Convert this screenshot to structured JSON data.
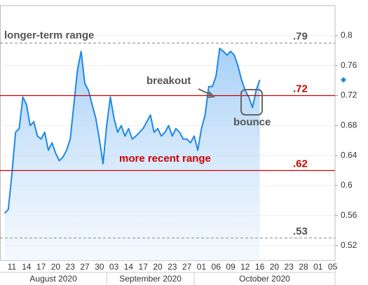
{
  "chart_data": {
    "type": "line",
    "categories": [
      null,
      null,
      "11",
      null,
      null,
      null,
      "14",
      null,
      null,
      null,
      "17",
      null,
      null,
      null,
      "20",
      null,
      null,
      null,
      "23",
      null,
      null,
      null,
      "27",
      null,
      null,
      null,
      "30",
      null,
      null,
      null,
      "03",
      null,
      null,
      null,
      "14",
      null,
      null,
      null,
      "17",
      null,
      null,
      null,
      "20",
      null,
      null,
      null,
      "23",
      null,
      null,
      null,
      "27",
      null,
      null,
      null,
      "01",
      null,
      null,
      null,
      "06",
      null,
      null,
      null,
      "09",
      null,
      null,
      null,
      "12",
      null,
      null,
      null,
      "16",
      null,
      null,
      null,
      "20",
      null,
      null,
      null,
      "23",
      null,
      null,
      null,
      "28",
      null,
      null,
      null,
      "01",
      null,
      null,
      null,
      "05",
      null,
      null
    ],
    "x_groups": [
      "August 2020",
      "September 2020",
      "October 2020"
    ],
    "series": [
      {
        "color": "#1e88e5",
        "values": [
          0.563,
          0.568,
          0.615,
          0.671,
          0.676,
          0.718,
          0.708,
          0.68,
          0.685,
          0.666,
          0.662,
          0.671,
          0.647,
          0.657,
          0.643,
          0.633,
          0.638,
          0.647,
          0.662,
          0.708,
          0.755,
          0.779,
          0.736,
          0.727,
          0.708,
          0.69,
          0.662,
          0.629,
          0.68,
          0.718,
          0.69,
          0.671,
          0.68,
          0.666,
          0.676,
          0.662,
          0.666,
          0.671,
          0.676,
          0.685,
          0.694,
          0.671,
          0.676,
          0.666,
          0.671,
          0.68,
          0.666,
          0.676,
          0.671,
          0.662,
          0.662,
          0.657,
          0.666,
          0.647,
          0.676,
          0.694,
          0.732,
          0.732,
          0.746,
          0.783,
          0.779,
          0.774,
          0.779,
          0.774,
          0.76,
          0.741,
          0.727,
          0.718,
          0.704,
          0.727,
          0.741,
          null,
          null,
          null,
          null,
          null,
          null,
          null,
          null,
          null,
          null,
          null,
          null,
          null,
          null,
          null,
          null,
          null,
          null,
          null,
          null,
          null,
          null
        ]
      }
    ],
    "ylim": [
      0.5,
      0.84
    ],
    "yticks": [
      0.52,
      0.56,
      0.6,
      0.64,
      0.68,
      0.72,
      0.76,
      0.8
    ],
    "y_axis_side": "right",
    "grid": true,
    "reference_lines": [
      {
        "value": 0.79,
        "label": ".79",
        "color": "#888888",
        "style": "dashed"
      },
      {
        "value": 0.72,
        "label": ".72",
        "color": "#cc0000",
        "style": "solid"
      },
      {
        "value": 0.62,
        "label": ".62",
        "color": "#cc0000",
        "style": "solid"
      },
      {
        "value": 0.53,
        "label": ".53",
        "color": "#888888",
        "style": "dashed"
      }
    ],
    "annotations": [
      "longer-term range",
      "breakout",
      "bounce",
      "more recent range"
    ]
  }
}
